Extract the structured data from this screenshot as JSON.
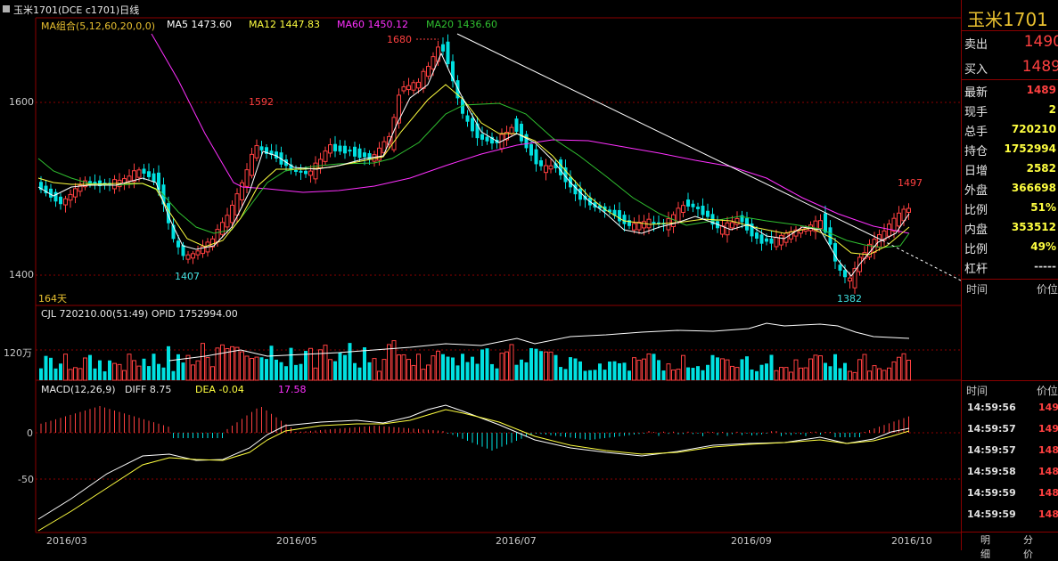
{
  "window": {
    "title": "玉米1701(DCE c1701)日线"
  },
  "indicators": {
    "ma_group": "MA组合(5,12,60,20,0,0)",
    "ma5": "MA5 1473.60",
    "ma12": "MA12 1447.83",
    "ma60": "MA60 1450.12",
    "ma20": "MA20 1436.60"
  },
  "price_axis": {
    "p1600": "1600",
    "p1400": "1400"
  },
  "annotations": {
    "high_1680": "1680",
    "a1592": "1592",
    "a1407": "1407",
    "a1382": "1382",
    "a1497": "1497",
    "days": "164天"
  },
  "volume_panel": {
    "header": "CJL  720210.00(51:49)   OPID  1752994.00",
    "axis_label": "120万"
  },
  "macd_panel": {
    "header": "MACD(12,26,9)",
    "diff": "DIFF  8.75",
    "dea": "DEA  -0.04",
    "macd": "17.58",
    "axis_zero": "0",
    "axis_neg50": "-50"
  },
  "date_axis": [
    "2016/03",
    "2016/05",
    "2016/07",
    "2016/09",
    "2016/10"
  ],
  "side_panel": {
    "title": "玉米1701",
    "sell": {
      "label": "卖出",
      "value": "1490"
    },
    "buy": {
      "label": "买入",
      "value": "1489"
    },
    "stats": [
      {
        "label": "最新",
        "value": "1489",
        "color": "#ff4040"
      },
      {
        "label": "现手",
        "value": "2",
        "color": "#ffff40"
      },
      {
        "label": "总手",
        "value": "720210",
        "color": "#ffff40"
      },
      {
        "label": "持仓",
        "value": "1752994",
        "color": "#ffff40"
      },
      {
        "label": "日增",
        "value": "2582",
        "color": "#ffff40"
      },
      {
        "label": "外盘",
        "value": "366698",
        "color": "#ffff40"
      },
      {
        "label": "比例",
        "value": "51%",
        "color": "#ffff40"
      },
      {
        "label": "内盘",
        "value": "353512",
        "color": "#ffff40"
      },
      {
        "label": "比例",
        "value": "49%",
        "color": "#ffff40"
      },
      {
        "label": "杠杆",
        "value": "-----",
        "color": "#d0d0d0"
      }
    ],
    "col_time": "时间",
    "col_price": "价位",
    "ticks": [
      {
        "time": "14:59:56",
        "price": "149"
      },
      {
        "time": "14:59:57",
        "price": "149"
      },
      {
        "time": "14:59:57",
        "price": "148"
      },
      {
        "time": "14:59:58",
        "price": "148"
      },
      {
        "time": "14:59:59",
        "price": "148"
      },
      {
        "time": "14:59:59",
        "price": "148"
      }
    ],
    "tab_detail": "明细",
    "tab_price": "分价"
  },
  "colors": {
    "up": "#ff4040",
    "down": "#00e0e0",
    "ma5": "#ffffff",
    "ma12": "#ffff40",
    "ma20": "#30c030",
    "ma60": "#ff30ff",
    "grid": "#8b0000"
  }
}
